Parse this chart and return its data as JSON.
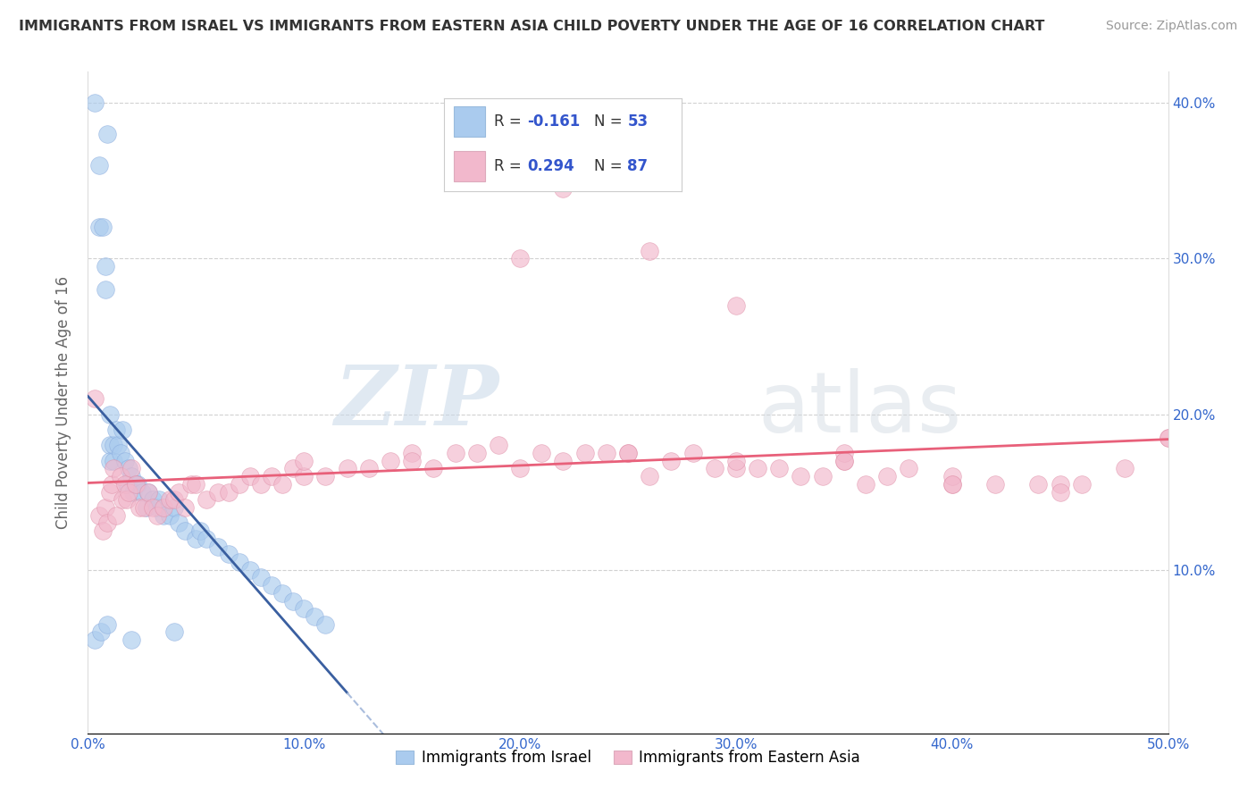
{
  "title": "IMMIGRANTS FROM ISRAEL VS IMMIGRANTS FROM EASTERN ASIA CHILD POVERTY UNDER THE AGE OF 16 CORRELATION CHART",
  "source": "Source: ZipAtlas.com",
  "ylabel": "Child Poverty Under the Age of 16",
  "xlim": [
    0.0,
    0.5
  ],
  "ylim": [
    -0.005,
    0.42
  ],
  "xticks": [
    0.0,
    0.1,
    0.2,
    0.3,
    0.4,
    0.5
  ],
  "yticks": [
    0.1,
    0.2,
    0.3,
    0.4
  ],
  "xticklabels": [
    "0.0%",
    "10.0%",
    "20.0%",
    "30.0%",
    "40.0%",
    "50.0%"
  ],
  "yticklabels_right": [
    "10.0%",
    "20.0%",
    "30.0%",
    "40.0%"
  ],
  "legend_label1": "Immigrants from Israel",
  "legend_label2": "Immigrants from Eastern Asia",
  "r1": "-0.161",
  "n1": "53",
  "r2": "0.294",
  "n2": "87",
  "color1": "#aacbee",
  "color2": "#f2b8cc",
  "line1_color": "#3a5fa0",
  "line1_dash_color": "#aabddd",
  "line2_color": "#e8607a",
  "watermark_zip": "ZIP",
  "watermark_atlas": "atlas",
  "title_color": "#333333",
  "source_color": "#999999",
  "axis_label_color": "#666666",
  "tick_color": "#3366cc",
  "grid_color": "#cccccc",
  "israel_x": [
    0.003,
    0.005,
    0.005,
    0.007,
    0.008,
    0.008,
    0.009,
    0.01,
    0.01,
    0.01,
    0.012,
    0.012,
    0.013,
    0.014,
    0.015,
    0.016,
    0.017,
    0.018,
    0.019,
    0.02,
    0.021,
    0.022,
    0.023,
    0.025,
    0.027,
    0.028,
    0.03,
    0.032,
    0.033,
    0.035,
    0.038,
    0.04,
    0.042,
    0.045,
    0.05,
    0.052,
    0.055,
    0.06,
    0.065,
    0.07,
    0.075,
    0.08,
    0.085,
    0.09,
    0.095,
    0.1,
    0.105,
    0.11,
    0.003,
    0.006,
    0.009,
    0.02,
    0.04
  ],
  "israel_y": [
    0.4,
    0.36,
    0.32,
    0.32,
    0.295,
    0.28,
    0.38,
    0.18,
    0.17,
    0.2,
    0.17,
    0.18,
    0.19,
    0.18,
    0.175,
    0.19,
    0.17,
    0.155,
    0.165,
    0.16,
    0.15,
    0.155,
    0.155,
    0.15,
    0.14,
    0.15,
    0.145,
    0.14,
    0.145,
    0.135,
    0.135,
    0.14,
    0.13,
    0.125,
    0.12,
    0.125,
    0.12,
    0.115,
    0.11,
    0.105,
    0.1,
    0.095,
    0.09,
    0.085,
    0.08,
    0.075,
    0.07,
    0.065,
    0.055,
    0.06,
    0.065,
    0.055,
    0.06
  ],
  "eastern_x": [
    0.003,
    0.005,
    0.007,
    0.008,
    0.009,
    0.01,
    0.011,
    0.012,
    0.013,
    0.015,
    0.016,
    0.017,
    0.018,
    0.019,
    0.02,
    0.022,
    0.024,
    0.026,
    0.028,
    0.03,
    0.032,
    0.035,
    0.038,
    0.04,
    0.042,
    0.045,
    0.048,
    0.05,
    0.055,
    0.06,
    0.065,
    0.07,
    0.075,
    0.08,
    0.085,
    0.09,
    0.095,
    0.1,
    0.11,
    0.12,
    0.13,
    0.14,
    0.15,
    0.16,
    0.17,
    0.18,
    0.19,
    0.2,
    0.21,
    0.22,
    0.23,
    0.24,
    0.25,
    0.26,
    0.27,
    0.28,
    0.29,
    0.3,
    0.31,
    0.32,
    0.33,
    0.34,
    0.35,
    0.36,
    0.37,
    0.38,
    0.4,
    0.42,
    0.44,
    0.46,
    0.48,
    0.5,
    0.22,
    0.26,
    0.3,
    0.35,
    0.4,
    0.45,
    0.1,
    0.15,
    0.2,
    0.25,
    0.3,
    0.35,
    0.4,
    0.45,
    0.5
  ],
  "eastern_y": [
    0.21,
    0.135,
    0.125,
    0.14,
    0.13,
    0.15,
    0.155,
    0.165,
    0.135,
    0.16,
    0.145,
    0.155,
    0.145,
    0.15,
    0.165,
    0.155,
    0.14,
    0.14,
    0.15,
    0.14,
    0.135,
    0.14,
    0.145,
    0.145,
    0.15,
    0.14,
    0.155,
    0.155,
    0.145,
    0.15,
    0.15,
    0.155,
    0.16,
    0.155,
    0.16,
    0.155,
    0.165,
    0.16,
    0.16,
    0.165,
    0.165,
    0.17,
    0.175,
    0.165,
    0.175,
    0.175,
    0.18,
    0.3,
    0.175,
    0.17,
    0.175,
    0.175,
    0.175,
    0.16,
    0.17,
    0.175,
    0.165,
    0.165,
    0.165,
    0.165,
    0.16,
    0.16,
    0.17,
    0.155,
    0.16,
    0.165,
    0.155,
    0.155,
    0.155,
    0.155,
    0.165,
    0.185,
    0.345,
    0.305,
    0.27,
    0.175,
    0.16,
    0.155,
    0.17,
    0.17,
    0.165,
    0.175,
    0.17,
    0.17,
    0.155,
    0.15,
    0.185
  ]
}
